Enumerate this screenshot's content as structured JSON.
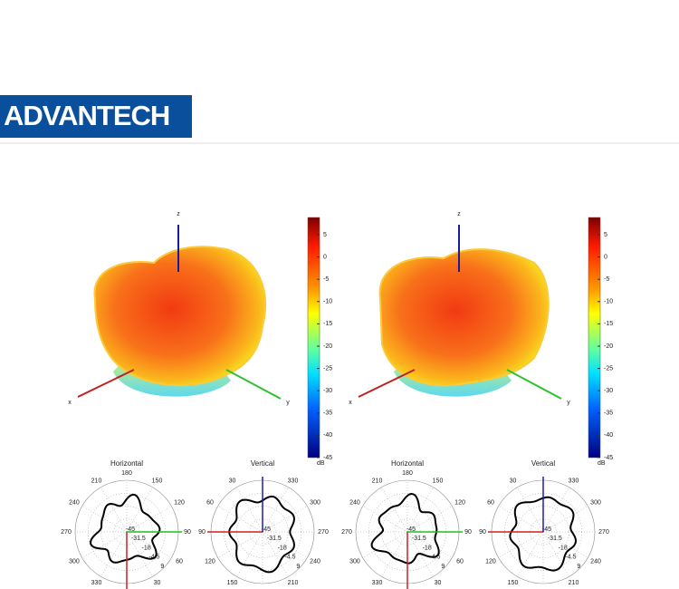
{
  "header": {
    "logo": "ADVANTECH"
  },
  "plots": [
    {
      "axes": {
        "x": "x",
        "y": "y",
        "z": "z"
      },
      "colorbar": {
        "ticks": [
          5,
          0,
          -5,
          -10,
          -15,
          -20,
          -25,
          -30,
          -35,
          -40,
          -45
        ],
        "unit": "dB"
      },
      "polar": [
        {
          "title": "Horizontal",
          "angles": [
            180,
            150,
            120,
            90,
            60,
            30,
            330,
            300,
            270,
            240,
            210
          ],
          "rticks": [
            -45,
            -31.5,
            -18,
            -4.5,
            9
          ]
        },
        {
          "title": "Vertical",
          "angles": [
            330,
            300,
            270,
            240,
            210,
            150,
            120,
            90,
            60,
            30
          ],
          "rticks": [
            -45,
            -31.5,
            -18,
            -4.5,
            9
          ]
        }
      ]
    },
    {
      "axes": {
        "x": "x",
        "y": "y",
        "z": "z"
      },
      "colorbar": {
        "ticks": [
          5,
          0,
          -5,
          -10,
          -15,
          -20,
          -25,
          -30,
          -35,
          -40,
          -45
        ],
        "unit": "dB"
      },
      "polar": [
        {
          "title": "Horizontal",
          "angles": [
            180,
            150,
            120,
            90,
            60,
            30,
            330,
            300,
            270,
            240,
            210
          ],
          "rticks": [
            -45,
            -31.5,
            -18,
            -4.5,
            9
          ]
        },
        {
          "title": "Vertical",
          "angles": [
            330,
            300,
            270,
            240,
            210,
            150,
            120,
            90,
            60,
            30
          ],
          "rticks": [
            -45,
            -31.5,
            -18,
            -4.5,
            9
          ]
        }
      ]
    }
  ]
}
